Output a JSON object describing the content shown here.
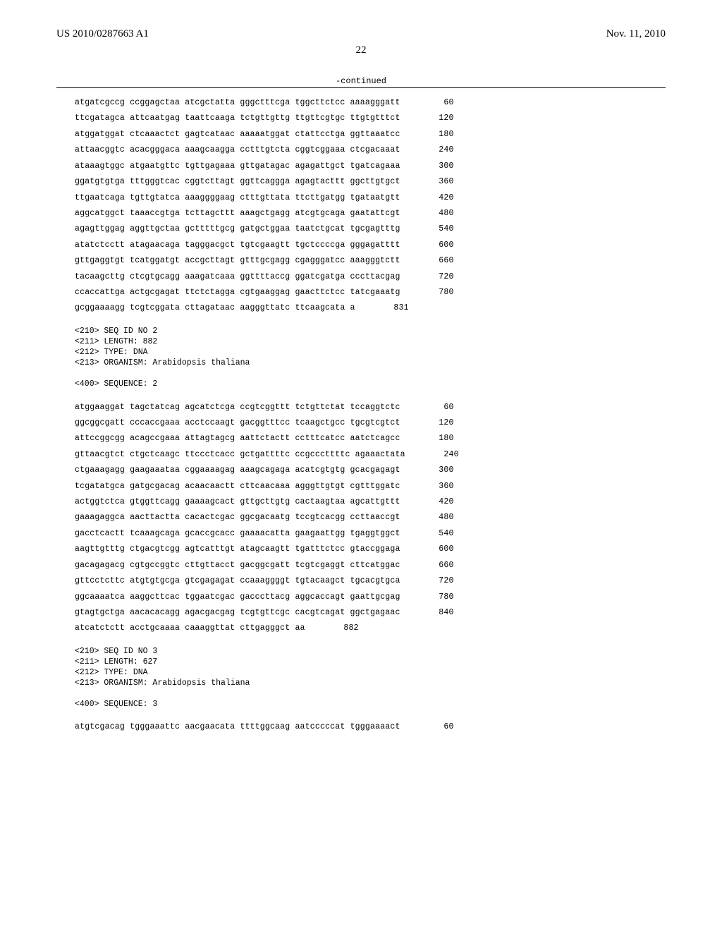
{
  "header": {
    "left": "US 2010/0287663 A1",
    "right": "Nov. 11, 2010"
  },
  "page_number": "22",
  "continued": "-continued",
  "seq1": {
    "lines": [
      {
        "t": "atgatcgccg ccggagctaa atcgctatta gggctttcga tggcttctcc aaaagggatt",
        "p": "60"
      },
      {
        "t": "ttcgatagca attcaatgag taattcaaga tctgttgttg ttgttcgtgc ttgtgtttct",
        "p": "120"
      },
      {
        "t": "atggatggat ctcaaactct gagtcataac aaaaatggat ctattcctga ggttaaatcc",
        "p": "180"
      },
      {
        "t": "attaacggtc acacgggaca aaagcaagga cctttgtcta cggtcggaaa ctcgacaaat",
        "p": "240"
      },
      {
        "t": "ataaagtggc atgaatgttc tgttgagaaa gttgatagac agagattgct tgatcagaaa",
        "p": "300"
      },
      {
        "t": "ggatgtgtga tttgggtcac cggtcttagt ggttcaggga agagtacttt ggcttgtgct",
        "p": "360"
      },
      {
        "t": "ttgaatcaga tgttgtatca aaaggggaag ctttgttata ttcttgatgg tgataatgtt",
        "p": "420"
      },
      {
        "t": "aggcatggct taaaccgtga tcttagcttt aaagctgagg atcgtgcaga gaatattcgt",
        "p": "480"
      },
      {
        "t": "agagttggag aggttgctaa gctttttgcg gatgctggaa taatctgcat tgcgagtttg",
        "p": "540"
      },
      {
        "t": "atatctcctt atagaacaga tagggacgct tgtcgaagtt tgctccccga gggagatttt",
        "p": "600"
      },
      {
        "t": "gttgaggtgt tcatggatgt accgcttagt gtttgcgagg cgagggatcc aaagggtctt",
        "p": "660"
      },
      {
        "t": "tacaagcttg ctcgtgcagg aaagatcaaa ggttttaccg ggatcgatga cccttacgag",
        "p": "720"
      },
      {
        "t": "ccaccattga actgcgagat ttctctagga cgtgaaggag gaacttctcc tatcgaaatg",
        "p": "780"
      },
      {
        "t": "gcggaaaagg tcgtcggata cttagataac aagggttatc ttcaagcata a",
        "p": "831"
      }
    ]
  },
  "meta2": [
    "<210> SEQ ID NO 2",
    "<211> LENGTH: 882",
    "<212> TYPE: DNA",
    "<213> ORGANISM: Arabidopsis thaliana",
    "",
    "<400> SEQUENCE: 2"
  ],
  "seq2": {
    "lines": [
      {
        "t": "atggaaggat tagctatcag agcatctcga ccgtcggttt tctgttctat tccaggtctc",
        "p": "60"
      },
      {
        "t": "ggcggcgatt cccaccgaaa acctccaagt gacggtttcc tcaagctgcc tgcgtcgtct",
        "p": "120"
      },
      {
        "t": "attccggcgg acagccgaaa attagtagcg aattctactt cctttcatcc aatctcagcc",
        "p": "180"
      },
      {
        "t": "gttaacgtct ctgctcaagc ttccctcacc gctgattttc ccgcccttttc agaaactata",
        "p": "240"
      },
      {
        "t": "ctgaaagagg gaagaaataa cggaaaagag aaagcagaga acatcgtgtg gcacgagagt",
        "p": "300"
      },
      {
        "t": "tcgatatgca gatgcgacag acaacaactt cttcaacaaa agggttgtgt cgtttggatc",
        "p": "360"
      },
      {
        "t": "actggtctca gtggttcagg gaaaagcact gttgcttgtg cactaagtaa agcattgttt",
        "p": "420"
      },
      {
        "t": "gaaagaggca aacttactta cacactcgac ggcgacaatg tccgtcacgg ccttaaccgt",
        "p": "480"
      },
      {
        "t": "gacctcactt tcaaagcaga gcaccgcacc gaaaacatta gaagaattgg tgaggtggct",
        "p": "540"
      },
      {
        "t": "aagttgtttg ctgacgtcgg agtcatttgt atagcaagtt tgatttctcc gtaccggaga",
        "p": "600"
      },
      {
        "t": "gacagagacg cgtgccggtc cttgttacct gacggcgatt tcgtcgaggt cttcatggac",
        "p": "660"
      },
      {
        "t": "gttcctcttc atgtgtgcga gtcgagagat ccaaaggggt tgtacaagct tgcacgtgca",
        "p": "720"
      },
      {
        "t": "ggcaaaatca aaggcttcac tggaatcgac gacccttacg aggcaccagt gaattgcgag",
        "p": "780"
      },
      {
        "t": "gtagtgctga aacacacagg agacgacgag tcgtgttcgc cacgtcagat ggctgagaac",
        "p": "840"
      },
      {
        "t": "atcatctctt acctgcaaaa caaaggttat cttgagggct aa",
        "p": "882"
      }
    ]
  },
  "meta3": [
    "<210> SEQ ID NO 3",
    "<211> LENGTH: 627",
    "<212> TYPE: DNA",
    "<213> ORGANISM: Arabidopsis thaliana",
    "",
    "<400> SEQUENCE: 3"
  ],
  "seq3": {
    "lines": [
      {
        "t": "atgtcgacag tgggaaattc aacgaacata ttttggcaag aatcccccat tgggaaaact",
        "p": "60"
      }
    ]
  },
  "style": {
    "text_color": "#000000",
    "background_color": "#ffffff",
    "mono_font": "Courier New",
    "serif_font": "Times New Roman",
    "header_fontsize": 15,
    "pagenum_fontsize": 15,
    "seq_fontsize": 11.5,
    "rule_color": "#000000"
  }
}
